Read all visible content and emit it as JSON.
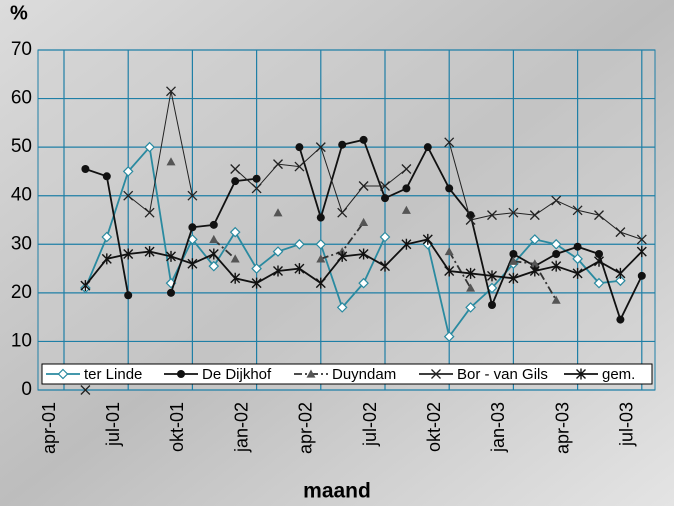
{
  "chart_data": {
    "type": "line",
    "y_axis_label": "%",
    "x_axis_label": "maand",
    "categories": [
      "apr-01",
      null,
      null,
      "jul-01",
      null,
      null,
      "okt-01",
      null,
      null,
      "jan-02",
      null,
      null,
      "apr-02",
      null,
      null,
      "jul-02",
      null,
      null,
      "okt-02",
      null,
      null,
      "jan-03",
      null,
      null,
      "apr-03",
      null,
      null,
      "jul-03"
    ],
    "ylim": [
      0,
      70
    ],
    "yticks": [
      0,
      10,
      20,
      30,
      40,
      50,
      60,
      70
    ],
    "grid": true,
    "legend": "bottom",
    "series": [
      {
        "name": "ter Linde",
        "color": "#2a8aa0",
        "marker": "diamond",
        "dash": "solid",
        "values": [
          null,
          21,
          31.5,
          45,
          50,
          22,
          31,
          25.5,
          32.5,
          25,
          28.5,
          30,
          30,
          17,
          22,
          31.5,
          null,
          30,
          11,
          17,
          21,
          26,
          31,
          30,
          27,
          22,
          22.5,
          null
        ]
      },
      {
        "name": "De Dijkhof",
        "color": "#111111",
        "marker": "circle",
        "dash": "solid",
        "values": [
          null,
          45.5,
          44,
          19.5,
          null,
          20,
          33.5,
          34,
          43,
          43.5,
          null,
          50,
          35.5,
          50.5,
          51.5,
          39.5,
          41.5,
          50,
          41.5,
          36,
          17.5,
          28,
          25.5,
          28,
          29.5,
          28,
          14.5,
          23.5
        ]
      },
      {
        "name": "Duyndam",
        "color": "#333333",
        "marker": "triangle",
        "dash": "dashdot",
        "values": [
          null,
          null,
          null,
          null,
          null,
          47,
          null,
          31,
          27,
          null,
          36.5,
          null,
          27,
          28.5,
          34.5,
          null,
          37,
          null,
          28.5,
          21,
          null,
          26.5,
          26,
          18.5,
          null,
          null,
          null,
          null
        ]
      },
      {
        "name": "Bor - van Gils",
        "color": "#222222",
        "marker": "x",
        "dash": "solid",
        "values": [
          null,
          0,
          null,
          40,
          36.5,
          61.5,
          40,
          null,
          45.5,
          41.5,
          46.5,
          46,
          50,
          36.5,
          42,
          42,
          45.5,
          null,
          51,
          35,
          36,
          36.5,
          36,
          39,
          37,
          36,
          32.5,
          31
        ]
      },
      {
        "name": "gem.",
        "color": "#111111",
        "marker": "star",
        "dash": "solid",
        "values": [
          null,
          21.5,
          27,
          28,
          28.5,
          27.5,
          26,
          28,
          23,
          22,
          24.5,
          25,
          22,
          27.5,
          28,
          25.5,
          30,
          31,
          24.5,
          24,
          23.5,
          23,
          24.5,
          25.5,
          24,
          26.5,
          24,
          28.5
        ]
      }
    ]
  }
}
